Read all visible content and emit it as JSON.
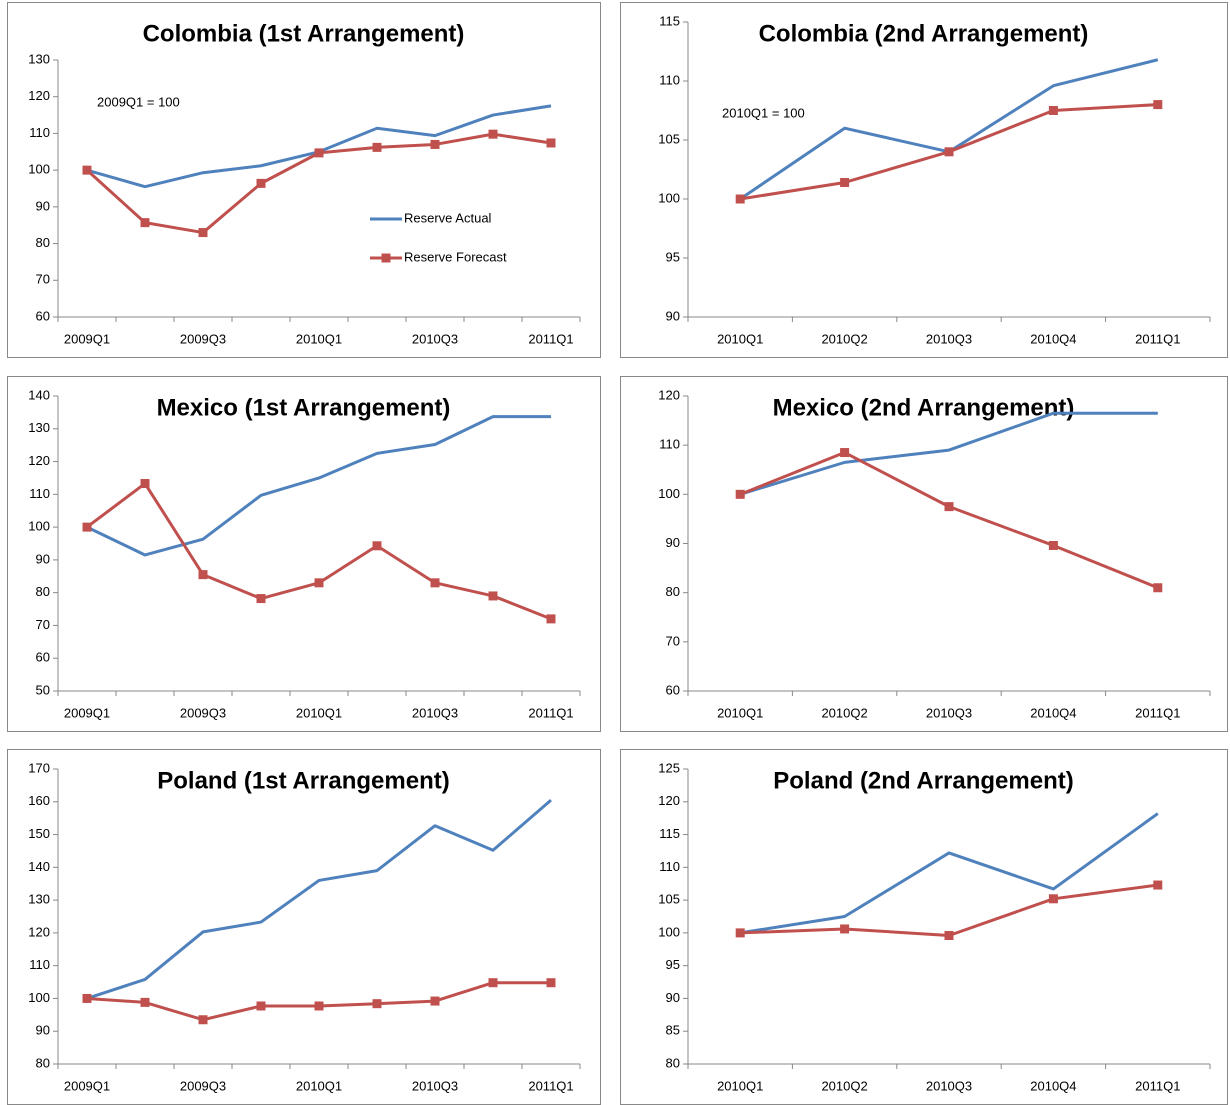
{
  "chart_data": [
    {
      "type": "line",
      "title": "Colombia (1st Arrangement)",
      "annotation": "2009Q1 = 100",
      "legend": "right",
      "categories": [
        "2009Q1",
        null,
        "2009Q3",
        null,
        "2010Q1",
        null,
        "2010Q3",
        null,
        "2011Q1"
      ],
      "series": [
        {
          "name": "Reserve Actual",
          "color": "#4f81bd",
          "marker": false,
          "values": [
            100,
            95.5,
            99.3,
            101.2,
            105,
            111.4,
            109.4,
            115,
            117.5
          ]
        },
        {
          "name": "Reserve Forecast",
          "color": "#c0504d",
          "marker": true,
          "values": [
            100,
            85.7,
            83,
            96.4,
            104.7,
            106.2,
            107,
            109.8,
            107.4
          ]
        }
      ],
      "ylim": [
        60,
        130
      ],
      "yticks": [
        60,
        70,
        80,
        90,
        100,
        110,
        120,
        130
      ]
    },
    {
      "type": "line",
      "title": "Colombia (2nd Arrangement)",
      "annotation": "2010Q1 = 100",
      "categories": [
        "2010Q1",
        "2010Q2",
        "2010Q3",
        "2010Q4",
        "2011Q1"
      ],
      "series": [
        {
          "color": "#4f81bd",
          "marker": false,
          "values": [
            100,
            106,
            104,
            109.6,
            111.8
          ]
        },
        {
          "color": "#c0504d",
          "marker": true,
          "values": [
            100,
            101.4,
            104,
            107.5,
            108
          ]
        }
      ],
      "ylim": [
        90,
        115
      ],
      "yticks": [
        90,
        95,
        100,
        105,
        110,
        115
      ]
    },
    {
      "type": "line",
      "title": "Mexico (1st Arrangement)",
      "categories": [
        "2009Q1",
        null,
        "2009Q3",
        null,
        "2010Q1",
        null,
        "2010Q3",
        null,
        "2011Q1"
      ],
      "series": [
        {
          "color": "#4f81bd",
          "marker": false,
          "values": [
            100,
            91.5,
            96.3,
            109.7,
            115,
            122.5,
            125.2,
            133.7,
            133.7
          ]
        },
        {
          "color": "#c0504d",
          "marker": true,
          "values": [
            100,
            113.3,
            85.5,
            78.2,
            83,
            94.3,
            83,
            79,
            72
          ]
        }
      ],
      "ylim": [
        50,
        140
      ],
      "yticks": [
        50,
        60,
        70,
        80,
        90,
        100,
        110,
        120,
        130,
        140
      ]
    },
    {
      "type": "line",
      "title": "Mexico (2nd Arrangement)",
      "categories": [
        "2010Q1",
        "2010Q2",
        "2010Q3",
        "2010Q4",
        "2011Q1"
      ],
      "series": [
        {
          "color": "#4f81bd",
          "marker": false,
          "values": [
            100,
            106.5,
            109,
            116.5,
            116.5
          ]
        },
        {
          "color": "#c0504d",
          "marker": true,
          "values": [
            100,
            108.5,
            97.5,
            89.6,
            81
          ]
        }
      ],
      "ylim": [
        60,
        120
      ],
      "yticks": [
        60,
        70,
        80,
        90,
        100,
        110,
        120
      ]
    },
    {
      "type": "line",
      "title": "Poland (1st Arrangement)",
      "categories": [
        "2009Q1",
        null,
        "2009Q3",
        null,
        "2010Q1",
        null,
        "2010Q3",
        null,
        "2011Q1"
      ],
      "series": [
        {
          "color": "#4f81bd",
          "marker": false,
          "values": [
            100,
            105.8,
            120.3,
            123.3,
            136,
            139,
            152.7,
            145.2,
            160.5
          ]
        },
        {
          "color": "#c0504d",
          "marker": true,
          "values": [
            100,
            98.8,
            93.5,
            97.7,
            97.7,
            98.4,
            99.2,
            104.8,
            104.8
          ]
        }
      ],
      "ylim": [
        80,
        170
      ],
      "yticks": [
        80,
        90,
        100,
        110,
        120,
        130,
        140,
        150,
        160,
        170
      ]
    },
    {
      "type": "line",
      "title": "Poland (2nd Arrangement)",
      "categories": [
        "2010Q1",
        "2010Q2",
        "2010Q3",
        "2010Q4",
        "2011Q1"
      ],
      "series": [
        {
          "color": "#4f81bd",
          "marker": false,
          "values": [
            100,
            102.5,
            112.2,
            106.7,
            118.2
          ]
        },
        {
          "color": "#c0504d",
          "marker": true,
          "values": [
            100,
            100.6,
            99.6,
            105.2,
            107.3
          ]
        }
      ],
      "ylim": [
        80,
        125
      ],
      "yticks": [
        80,
        85,
        90,
        95,
        100,
        105,
        110,
        115,
        120,
        125
      ]
    }
  ]
}
